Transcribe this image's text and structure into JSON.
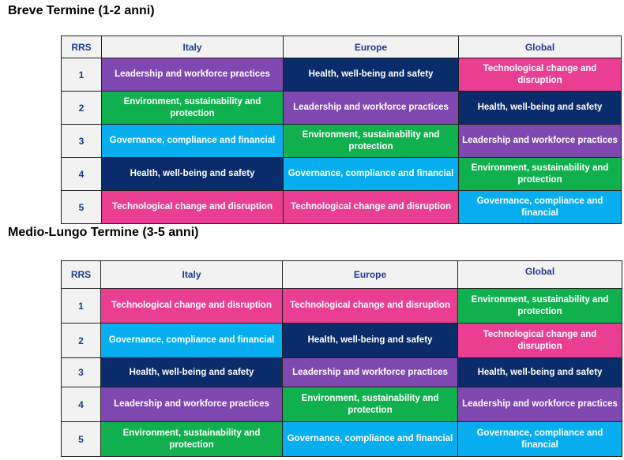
{
  "sections": [
    {
      "title": "Breve Termine (1-2 anni)",
      "columns": [
        "RRS",
        "Italy",
        "Europe",
        "Global"
      ],
      "rows": [
        {
          "rank": "1",
          "cells": [
            {
              "text": "Leadership and workforce practices",
              "color": "#7f48b0"
            },
            {
              "text": "Health, well-being and safety",
              "color": "#0b2c6b"
            },
            {
              "text": "Technological change and disruption",
              "color": "#ea3e93"
            }
          ]
        },
        {
          "rank": "2",
          "cells": [
            {
              "text": "Environment, sustainability and protection",
              "color": "#10b04f"
            },
            {
              "text": "Leadership and workforce practices",
              "color": "#7f48b0"
            },
            {
              "text": "Health, well-being and safety",
              "color": "#0b2c6b"
            }
          ]
        },
        {
          "rank": "3",
          "cells": [
            {
              "text": "Governance, compliance and financial",
              "color": "#07aeef"
            },
            {
              "text": "Environment, sustainability and protection",
              "color": "#10b04f"
            },
            {
              "text": "Leadership and workforce practices",
              "color": "#7f48b0"
            }
          ]
        },
        {
          "rank": "4",
          "cells": [
            {
              "text": "Health, well-being and safety",
              "color": "#0b2c6b"
            },
            {
              "text": "Governance, compliance and financial",
              "color": "#07aeef"
            },
            {
              "text": "Environment, sustainability and protection",
              "color": "#10b04f"
            }
          ]
        },
        {
          "rank": "5",
          "cells": [
            {
              "text": "Technological change and disruption",
              "color": "#ea3e93"
            },
            {
              "text": "Technological change and disruption",
              "color": "#ea3e93"
            },
            {
              "text": "Governance, compliance and financial",
              "color": "#07aeef"
            }
          ]
        }
      ]
    },
    {
      "title": "Medio-Lungo Termine (3-5 anni)",
      "columns": [
        "RRS",
        "Italy",
        "Europe",
        "Global"
      ],
      "rows": [
        {
          "rank": "1",
          "cells": [
            {
              "text": "Technological change and disruption",
              "color": "#ea3e93"
            },
            {
              "text": "Technological change and disruption",
              "color": "#ea3e93"
            },
            {
              "text": "Environment, sustainability and protection",
              "color": "#10b04f"
            }
          ]
        },
        {
          "rank": "2",
          "cells": [
            {
              "text": "Governance, compliance and financial",
              "color": "#07aeef"
            },
            {
              "text": "Health, well-being and safety",
              "color": "#0b2c6b"
            },
            {
              "text": "Technological change and disruption",
              "color": "#ea3e93"
            }
          ]
        },
        {
          "rank": "3",
          "cells": [
            {
              "text": "Health, well-being and safety",
              "color": "#0b2c6b"
            },
            {
              "text": "Leadership and workforce practices",
              "color": "#7f48b0"
            },
            {
              "text": "Health, well-being and safety",
              "color": "#0b2c6b"
            }
          ]
        },
        {
          "rank": "4",
          "cells": [
            {
              "text": "Leadership and workforce practices",
              "color": "#7f48b0"
            },
            {
              "text": "Environment, sustainability and protection",
              "color": "#10b04f"
            },
            {
              "text": "Leadership and workforce practices",
              "color": "#7f48b0"
            }
          ]
        },
        {
          "rank": "5",
          "cells": [
            {
              "text": "Environment, sustainability and protection",
              "color": "#10b04f"
            },
            {
              "text": "Governance, compliance and financial",
              "color": "#07aeef"
            },
            {
              "text": "Governance, compliance and financial",
              "color": "#07aeef"
            }
          ]
        }
      ]
    }
  ]
}
